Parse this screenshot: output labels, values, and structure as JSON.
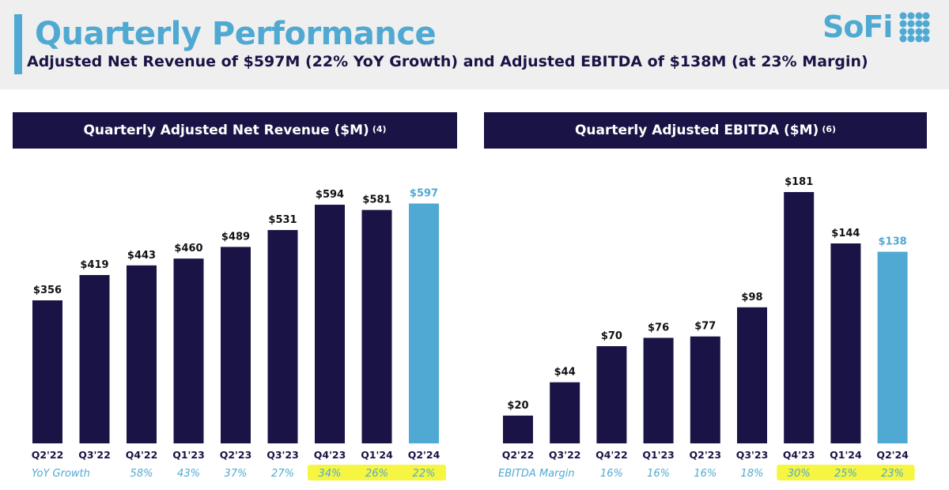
{
  "header": {
    "title": "Quarterly Performance",
    "subtitle": "Adjusted Net Revenue of $597M (22% YoY Growth) and Adjusted EBITDA of $138M (at 23% Margin)",
    "logo_text": "SoFi"
  },
  "colors": {
    "dark_bar": "#1a1446",
    "highlight_bar": "#4fa9d2",
    "highlight_marker": "#f5f542",
    "metric_text": "#4fa9d2"
  },
  "chart_data": [
    {
      "type": "bar",
      "title": "Quarterly Adjusted Net Revenue ($M)",
      "title_note": "(4)",
      "categories": [
        "Q2'22",
        "Q3'22",
        "Q4'22",
        "Q1'23",
        "Q2'23",
        "Q3'23",
        "Q4'23",
        "Q1'24",
        "Q2'24"
      ],
      "values": [
        356,
        419,
        443,
        460,
        489,
        531,
        594,
        581,
        597
      ],
      "data_labels": [
        "$356",
        "$419",
        "$443",
        "$460",
        "$489",
        "$531",
        "$594",
        "$581",
        "$597"
      ],
      "ylim": [
        0,
        600
      ],
      "highlight_index": 8,
      "metric_row": {
        "label": "YoY Growth",
        "values": [
          "58%",
          "43%",
          "37%",
          "27%",
          "34%",
          "26%",
          "22%"
        ],
        "category_indices": [
          2,
          3,
          4,
          5,
          6,
          7,
          8
        ],
        "highlighted_indices": [
          6,
          7,
          8
        ]
      }
    },
    {
      "type": "bar",
      "title": "Quarterly Adjusted EBITDA ($M)",
      "title_note": "(6)",
      "categories": [
        "Q2'22",
        "Q3'22",
        "Q4'22",
        "Q1'23",
        "Q2'23",
        "Q3'23",
        "Q4'23",
        "Q1'24",
        "Q2'24"
      ],
      "values": [
        20,
        44,
        70,
        76,
        77,
        98,
        181,
        144,
        138
      ],
      "data_labels": [
        "$20",
        "$44",
        "$70",
        "$76",
        "$77",
        "$98",
        "$181",
        "$144",
        "$138"
      ],
      "ylim": [
        0,
        181
      ],
      "highlight_index": 8,
      "metric_row": {
        "label": "EBITDA Margin",
        "values": [
          "16%",
          "16%",
          "16%",
          "18%",
          "30%",
          "25%",
          "23%"
        ],
        "category_indices": [
          2,
          3,
          4,
          5,
          6,
          7,
          8
        ],
        "highlighted_indices": [
          6,
          7,
          8
        ]
      }
    }
  ]
}
